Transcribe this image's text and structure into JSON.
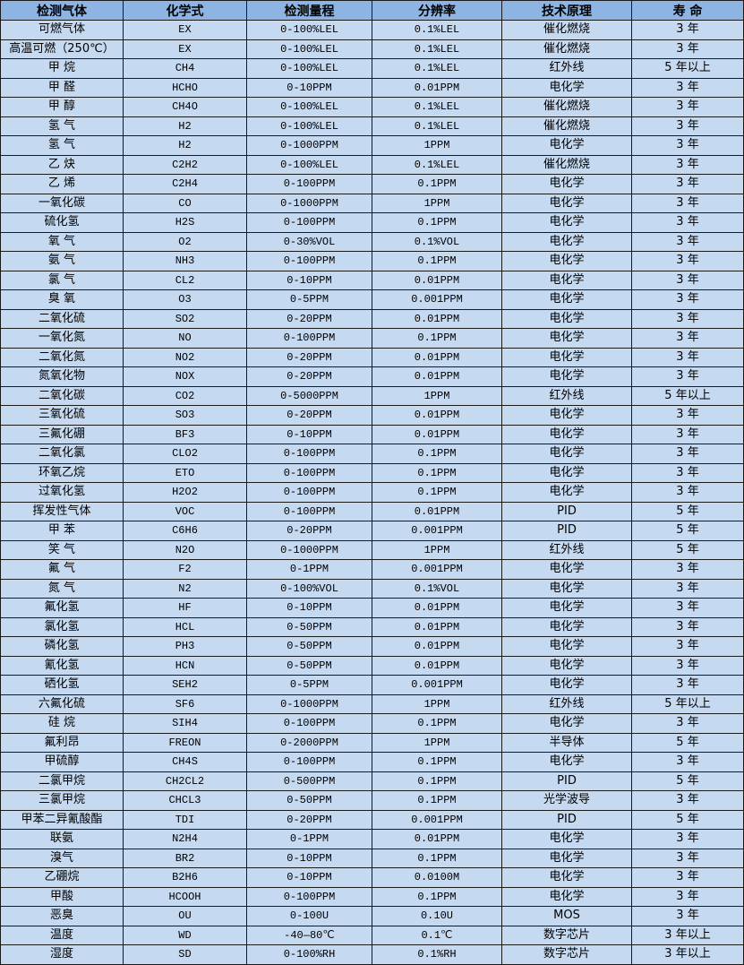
{
  "colors": {
    "header_bg": "#8db4e2",
    "body_bg": "#c5d9f1",
    "border": "#1a1a1a"
  },
  "headers": [
    "检测气体",
    "化学式",
    "检测量程",
    "分辨率",
    "技术原理",
    "寿 命"
  ],
  "rows": [
    [
      "可燃气体",
      "EX",
      "0-100%LEL",
      "0.1%LEL",
      "催化燃烧",
      "3 年"
    ],
    [
      "高温可燃（250℃）",
      "EX",
      "0-100%LEL",
      "0.1%LEL",
      "催化燃烧",
      "3 年"
    ],
    [
      "甲 烷",
      "CH4",
      "0-100%LEL",
      "0.1%LEL",
      "红外线",
      "5 年以上"
    ],
    [
      "甲 醛",
      "HCHO",
      "0-10PPM",
      "0.01PPM",
      "电化学",
      "3 年"
    ],
    [
      "甲 醇",
      "CH4O",
      "0-100%LEL",
      "0.1%LEL",
      "催化燃烧",
      "3 年"
    ],
    [
      "氢 气",
      "H2",
      "0-100%LEL",
      "0.1%LEL",
      "催化燃烧",
      "3 年"
    ],
    [
      "氢 气",
      "H2",
      "0-1000PPM",
      "1PPM",
      "电化学",
      "3 年"
    ],
    [
      "乙 炔",
      "C2H2",
      "0-100%LEL",
      "0.1%LEL",
      "催化燃烧",
      "3 年"
    ],
    [
      "乙 烯",
      "C2H4",
      "0-100PPM",
      "0.1PPM",
      "电化学",
      "3 年"
    ],
    [
      "一氧化碳",
      "CO",
      "0-1000PPM",
      "1PPM",
      "电化学",
      "3 年"
    ],
    [
      "硫化氢",
      "H2S",
      "0-100PPM",
      "0.1PPM",
      "电化学",
      "3 年"
    ],
    [
      "氧 气",
      "O2",
      "0-30%VOL",
      "0.1%VOL",
      "电化学",
      "3 年"
    ],
    [
      "氨 气",
      "NH3",
      "0-100PPM",
      "0.1PPM",
      "电化学",
      "3 年"
    ],
    [
      "氯 气",
      "CL2",
      "0-10PPM",
      "0.01PPM",
      "电化学",
      "3 年"
    ],
    [
      "臭 氧",
      "O3",
      "0-5PPM",
      "0.001PPM",
      "电化学",
      "3 年"
    ],
    [
      "二氧化硫",
      "SO2",
      "0-20PPM",
      "0.01PPM",
      "电化学",
      "3 年"
    ],
    [
      "一氧化氮",
      "NO",
      "0-100PPM",
      "0.1PPM",
      "电化学",
      "3 年"
    ],
    [
      "二氧化氮",
      "NO2",
      "0-20PPM",
      "0.01PPM",
      "电化学",
      "3 年"
    ],
    [
      "氮氧化物",
      "NOX",
      "0-20PPM",
      "0.01PPM",
      "电化学",
      "3 年"
    ],
    [
      "二氧化碳",
      "CO2",
      "0-5000PPM",
      "1PPM",
      "红外线",
      "5 年以上"
    ],
    [
      "三氧化硫",
      "SO3",
      "0-20PPM",
      "0.01PPM",
      "电化学",
      "3 年"
    ],
    [
      "三氟化硼",
      "BF3",
      "0-10PPM",
      "0.01PPM",
      "电化学",
      "3 年"
    ],
    [
      "二氧化氯",
      "CLO2",
      "0-100PPM",
      "0.1PPM",
      "电化学",
      "3 年"
    ],
    [
      "环氧乙烷",
      "ETO",
      "0-100PPM",
      "0.1PPM",
      "电化学",
      "3 年"
    ],
    [
      "过氧化氢",
      "H2O2",
      "0-100PPM",
      "0.1PPM",
      "电化学",
      "3 年"
    ],
    [
      "挥发性气体",
      "VOC",
      "0-100PPM",
      "0.01PPM",
      "PID",
      "5 年"
    ],
    [
      "甲 苯",
      "C6H6",
      "0-20PPM",
      "0.001PPM",
      "PID",
      "5 年"
    ],
    [
      "笑 气",
      "N2O",
      "0-1000PPM",
      "1PPM",
      "红外线",
      "5 年"
    ],
    [
      "氟 气",
      "F2",
      "0-1PPM",
      "0.001PPM",
      "电化学",
      "3 年"
    ],
    [
      "氮 气",
      "N2",
      "0-100%VOL",
      "0.1%VOL",
      "电化学",
      "3 年"
    ],
    [
      "氟化氢",
      "HF",
      "0-10PPM",
      "0.01PPM",
      "电化学",
      "3 年"
    ],
    [
      "氯化氢",
      "HCL",
      "0-50PPM",
      "0.01PPM",
      "电化学",
      "3 年"
    ],
    [
      "磷化氢",
      "PH3",
      "0-50PPM",
      "0.01PPM",
      "电化学",
      "3 年"
    ],
    [
      "氰化氢",
      "HCN",
      "0-50PPM",
      "0.01PPM",
      "电化学",
      "3 年"
    ],
    [
      "硒化氢",
      "SEH2",
      "0-5PPM",
      "0.001PPM",
      "电化学",
      "3 年"
    ],
    [
      "六氟化硫",
      "SF6",
      "0-1000PPM",
      "1PPM",
      "红外线",
      "5 年以上"
    ],
    [
      "硅 烷",
      "SIH4",
      "0-100PPM",
      "0.1PPM",
      "电化学",
      "3 年"
    ],
    [
      "氟利昂",
      "FREON",
      "0-2000PPM",
      "1PPM",
      "半导体",
      "5 年"
    ],
    [
      "甲硫醇",
      "CH4S",
      "0-100PPM",
      "0.1PPM",
      "电化学",
      "3 年"
    ],
    [
      "二氯甲烷",
      "CH2CL2",
      "0-500PPM",
      "0.1PPM",
      "PID",
      "5 年"
    ],
    [
      "三氯甲烷",
      "CHCL3",
      "0-50PPM",
      "0.1PPM",
      "光学波导",
      "3 年"
    ],
    [
      "甲苯二异氰酸酯",
      "TDI",
      "0-20PPM",
      "0.001PPM",
      "PID",
      "5 年"
    ],
    [
      "联氨",
      "N2H4",
      "0-1PPM",
      "0.01PPM",
      "电化学",
      "3 年"
    ],
    [
      "溴气",
      "BR2",
      "0-10PPM",
      "0.1PPM",
      "电化学",
      "3 年"
    ],
    [
      "乙硼烷",
      "B2H6",
      "0-10PPM",
      "0.0100M",
      "电化学",
      "3 年"
    ],
    [
      "甲酸",
      "HCOOH",
      "0-100PPM",
      "0.1PPM",
      "电化学",
      "3 年"
    ],
    [
      "恶臭",
      "OU",
      "0-100U",
      "0.10U",
      "MOS",
      "3 年"
    ],
    [
      "温度",
      "WD",
      "-40—80℃",
      "0.1℃",
      "数字芯片",
      "3 年以上"
    ],
    [
      "湿度",
      "SD",
      "0-100%RH",
      "0.1%RH",
      "数字芯片",
      "3 年以上"
    ]
  ]
}
